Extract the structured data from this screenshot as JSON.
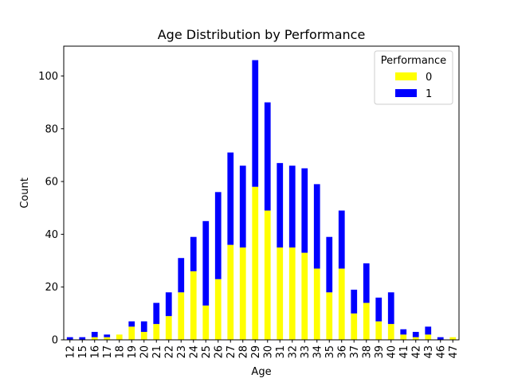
{
  "chart_data": {
    "type": "bar",
    "stacked": true,
    "title": "Age Distribution by Performance",
    "xlabel": "Age",
    "ylabel": "Count",
    "categories": [
      "12",
      "15",
      "16",
      "17",
      "18",
      "19",
      "20",
      "21",
      "22",
      "23",
      "24",
      "25",
      "26",
      "27",
      "28",
      "29",
      "30",
      "31",
      "32",
      "33",
      "34",
      "35",
      "36",
      "37",
      "38",
      "39",
      "40",
      "41",
      "42",
      "43",
      "46",
      "47"
    ],
    "series": [
      {
        "name": "0",
        "color": "#ffff00",
        "values": [
          0,
          0,
          1,
          1,
          2,
          5,
          3,
          6,
          9,
          18,
          26,
          13,
          23,
          36,
          35,
          58,
          49,
          35,
          35,
          33,
          27,
          18,
          27,
          10,
          14,
          7,
          6,
          2,
          1,
          2,
          0,
          1
        ]
      },
      {
        "name": "1",
        "color": "#0000ff",
        "values": [
          1,
          1,
          2,
          1,
          0,
          2,
          4,
          8,
          9,
          13,
          13,
          32,
          33,
          35,
          31,
          48,
          41,
          32,
          31,
          32,
          32,
          21,
          22,
          9,
          15,
          9,
          12,
          2,
          2,
          3,
          1,
          0
        ]
      }
    ],
    "ylim": [
      0,
      111.3
    ],
    "yticks": [
      0,
      20,
      40,
      60,
      80,
      100
    ],
    "grid": false,
    "legend": {
      "title": "Performance",
      "position": "top-right"
    }
  }
}
